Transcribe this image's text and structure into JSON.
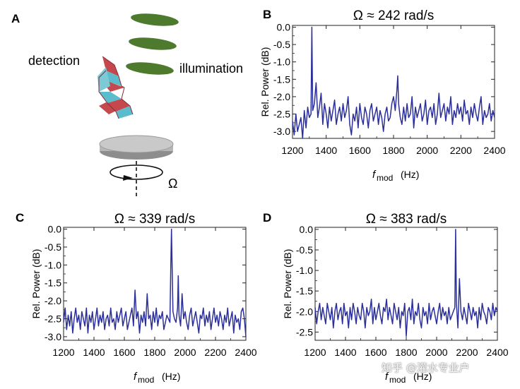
{
  "panels": {
    "A": {
      "letter": "A",
      "detection_label": "detection",
      "illumination_label": "illumination",
      "omega_label": "Ω"
    }
  },
  "chart_data": [
    {
      "panel": "B",
      "type": "line",
      "title": "Ω ≈ 242 rad/s",
      "xlabel_main": "f",
      "xlabel_sub": "mod",
      "xlabel_unit": "(Hz)",
      "ylabel": "Rel. Power (dB)",
      "xlim": [
        1200,
        2400
      ],
      "ylim": [
        -3.2,
        0.05
      ],
      "xticks": [
        1200,
        1400,
        1600,
        1800,
        2000,
        2200,
        2400
      ],
      "yticks": [
        0.0,
        -0.5,
        -1.0,
        -1.5,
        -2.0,
        -2.5,
        -3.0
      ],
      "ytick_labels": [
        "0.0",
        "-0.5",
        "-1.0",
        "-1.5",
        "-2.0",
        "-2.5",
        "-3.0"
      ],
      "color": "#2b2f9a",
      "series": [
        {
          "x": [
            1200,
            1210,
            1220,
            1230,
            1240,
            1250,
            1260,
            1270,
            1280,
            1290,
            1300,
            1310,
            1315,
            1320,
            1330,
            1340,
            1350,
            1360,
            1370,
            1380,
            1390,
            1400,
            1410,
            1420,
            1430,
            1440,
            1450,
            1460,
            1470,
            1480,
            1490,
            1500,
            1510,
            1520,
            1530,
            1540,
            1550,
            1560,
            1570,
            1580,
            1590,
            1600,
            1610,
            1620,
            1630,
            1640,
            1650,
            1660,
            1670,
            1680,
            1690,
            1700,
            1710,
            1720,
            1730,
            1740,
            1750,
            1760,
            1770,
            1780,
            1790,
            1800,
            1810,
            1820,
            1825,
            1830,
            1840,
            1850,
            1860,
            1870,
            1880,
            1890,
            1900,
            1910,
            1920,
            1930,
            1940,
            1950,
            1960,
            1970,
            1980,
            1990,
            2000,
            2010,
            2020,
            2030,
            2040,
            2050,
            2060,
            2070,
            2080,
            2090,
            2100,
            2110,
            2120,
            2130,
            2140,
            2150,
            2160,
            2170,
            2180,
            2190,
            2200,
            2210,
            2220,
            2230,
            2240,
            2250,
            2260,
            2270,
            2280,
            2290,
            2300,
            2310,
            2320,
            2330,
            2340,
            2350,
            2360,
            2370,
            2380,
            2390,
            2400
          ],
          "y": [
            -2.7,
            -3.1,
            -2.5,
            -3.0,
            -2.8,
            -2.6,
            -3.2,
            -2.4,
            -2.9,
            -2.3,
            -2.6,
            -2.5,
            0.0,
            -2.4,
            -2.2,
            -1.6,
            -2.6,
            -2.3,
            -1.9,
            -2.8,
            -2.2,
            -2.5,
            -2.9,
            -2.3,
            -2.7,
            -2.4,
            -2.1,
            -2.8,
            -2.5,
            -2.3,
            -2.7,
            -2.2,
            -2.6,
            -2.4,
            -2.0,
            -2.8,
            -3.1,
            -2.5,
            -2.7,
            -2.3,
            -2.9,
            -2.2,
            -2.6,
            -2.8,
            -2.3,
            -2.5,
            -2.9,
            -2.4,
            -2.2,
            -2.7,
            -2.5,
            -2.3,
            -2.8,
            -2.4,
            -2.6,
            -3.0,
            -2.5,
            -2.3,
            -2.7,
            -2.6,
            -2.2,
            -2.0,
            -2.4,
            -1.8,
            -1.4,
            -2.2,
            -2.6,
            -2.8,
            -2.3,
            -2.7,
            -2.2,
            -2.6,
            -2.5,
            -2.0,
            -2.9,
            -2.3,
            -2.6,
            -2.4,
            -2.2,
            -2.7,
            -2.5,
            -2.1,
            -2.8,
            -2.4,
            -2.3,
            -2.6,
            -2.2,
            -2.8,
            -2.5,
            -1.9,
            -2.6,
            -2.4,
            -2.2,
            -2.7,
            -2.3,
            -2.5,
            -2.0,
            -2.8,
            -2.4,
            -2.6,
            -2.2,
            -2.5,
            -2.3,
            -2.7,
            -2.1,
            -2.5,
            -2.4,
            -2.8,
            -2.3,
            -2.6,
            -2.2,
            -2.5,
            -2.7,
            -2.3,
            -2.0,
            -2.8,
            -2.4,
            -2.6,
            -2.5,
            -2.2,
            -2.7,
            -2.4,
            -2.6
          ]
        }
      ]
    },
    {
      "panel": "C",
      "type": "line",
      "title": "Ω ≈ 339 rad/s",
      "xlabel_main": "f",
      "xlabel_sub": "mod",
      "xlabel_unit": "(Hz)",
      "ylabel": "Rel. Power (dB)",
      "xlim": [
        1200,
        2400
      ],
      "ylim": [
        -3.1,
        0.05
      ],
      "xticks": [
        1200,
        1400,
        1600,
        1800,
        2000,
        2200,
        2400
      ],
      "yticks": [
        0.0,
        -0.5,
        -1.0,
        -1.5,
        -2.0,
        -2.5,
        -3.0
      ],
      "ytick_labels": [
        "0.0",
        "-0.5",
        "-1.0",
        "-1.5",
        "-2.0",
        "-2.5",
        "-3.0"
      ],
      "color": "#2b2f9a",
      "series": [
        {
          "x": [
            1200,
            1210,
            1220,
            1230,
            1240,
            1250,
            1260,
            1270,
            1280,
            1290,
            1300,
            1310,
            1320,
            1330,
            1340,
            1350,
            1360,
            1370,
            1380,
            1390,
            1400,
            1410,
            1420,
            1430,
            1440,
            1450,
            1460,
            1470,
            1480,
            1490,
            1500,
            1510,
            1520,
            1530,
            1540,
            1550,
            1560,
            1570,
            1580,
            1590,
            1600,
            1610,
            1620,
            1630,
            1640,
            1650,
            1660,
            1670,
            1680,
            1690,
            1700,
            1710,
            1720,
            1730,
            1740,
            1750,
            1760,
            1770,
            1780,
            1790,
            1800,
            1810,
            1820,
            1830,
            1840,
            1850,
            1860,
            1870,
            1880,
            1890,
            1900,
            1905,
            1910,
            1920,
            1930,
            1940,
            1950,
            1955,
            1960,
            1970,
            1980,
            1990,
            2000,
            2010,
            2020,
            2030,
            2040,
            2050,
            2060,
            2070,
            2080,
            2090,
            2100,
            2110,
            2120,
            2130,
            2140,
            2150,
            2160,
            2170,
            2180,
            2190,
            2200,
            2210,
            2220,
            2230,
            2240,
            2250,
            2260,
            2270,
            2280,
            2290,
            2300,
            2310,
            2320,
            2330,
            2340,
            2350,
            2360,
            2370,
            2380,
            2390,
            2400
          ],
          "y": [
            -2.6,
            -2.2,
            -2.8,
            -2.4,
            -2.7,
            -2.3,
            -2.9,
            -2.5,
            -2.2,
            -2.6,
            -2.4,
            -2.8,
            -2.3,
            -2.5,
            -2.7,
            -2.2,
            -2.9,
            -2.4,
            -2.6,
            -2.3,
            -2.8,
            -2.5,
            -2.2,
            -2.7,
            -2.4,
            -2.6,
            -2.3,
            -2.8,
            -2.5,
            -2.4,
            -2.7,
            -2.2,
            -2.6,
            -2.5,
            -2.8,
            -2.3,
            -2.6,
            -2.4,
            -2.2,
            -2.7,
            -2.5,
            -2.3,
            -2.8,
            -2.6,
            -2.4,
            -2.2,
            -2.7,
            -1.7,
            -2.5,
            -2.3,
            -2.9,
            -2.4,
            -2.6,
            -2.3,
            -2.7,
            -1.8,
            -2.5,
            -2.4,
            -2.8,
            -2.3,
            -2.6,
            -2.2,
            -2.7,
            -2.4,
            -2.5,
            -2.3,
            -2.8,
            -2.6,
            -2.4,
            -2.5,
            -2.6,
            -1.2,
            0.0,
            -2.3,
            -2.5,
            -2.6,
            -2.2,
            -1.3,
            -2.4,
            -2.7,
            -1.8,
            -2.5,
            -2.3,
            -2.6,
            -2.8,
            -2.4,
            -2.2,
            -2.7,
            -2.5,
            -2.3,
            -2.6,
            -2.9,
            -2.4,
            -2.5,
            -2.2,
            -2.7,
            -2.4,
            -2.6,
            -2.3,
            -2.8,
            -2.5,
            -2.2,
            -2.6,
            -2.4,
            -2.7,
            -2.3,
            -2.5,
            -2.8,
            -2.4,
            -2.6,
            -2.2,
            -2.7,
            -2.5,
            -2.3,
            -2.9,
            -2.4,
            -2.6,
            -2.5,
            -2.8,
            -2.3,
            -2.2,
            -2.5,
            -3.0
          ]
        }
      ]
    },
    {
      "panel": "D",
      "type": "line",
      "title": "Ω ≈ 383 rad/s",
      "xlabel_main": "f",
      "xlabel_sub": "mod",
      "xlabel_unit": "(Hz)",
      "ylabel": "Rel. Power (dB)",
      "xlim": [
        1200,
        2400
      ],
      "ylim": [
        -2.7,
        0.05
      ],
      "xticks": [
        1200,
        1400,
        1600,
        1800,
        2000,
        2200,
        2400
      ],
      "yticks": [
        0.0,
        -0.5,
        -1.0,
        -1.5,
        -2.0,
        -2.5
      ],
      "ytick_labels": [
        "0.0",
        "-0.5",
        "-1.0",
        "-1.5",
        "-2.0",
        "-2.5"
      ],
      "color": "#2b2f9a",
      "series": [
        {
          "x": [
            1200,
            1210,
            1220,
            1230,
            1240,
            1250,
            1260,
            1270,
            1280,
            1290,
            1300,
            1310,
            1320,
            1330,
            1340,
            1350,
            1360,
            1370,
            1380,
            1390,
            1400,
            1410,
            1420,
            1430,
            1440,
            1450,
            1460,
            1470,
            1480,
            1490,
            1500,
            1510,
            1520,
            1530,
            1540,
            1550,
            1560,
            1570,
            1580,
            1590,
            1600,
            1610,
            1620,
            1630,
            1640,
            1650,
            1660,
            1670,
            1680,
            1690,
            1700,
            1710,
            1720,
            1730,
            1740,
            1750,
            1760,
            1770,
            1780,
            1790,
            1800,
            1810,
            1820,
            1830,
            1840,
            1850,
            1860,
            1870,
            1880,
            1890,
            1900,
            1910,
            1920,
            1930,
            1940,
            1950,
            1960,
            1970,
            1980,
            1990,
            2000,
            2010,
            2020,
            2030,
            2040,
            2050,
            2060,
            2070,
            2080,
            2090,
            2100,
            2110,
            2120,
            2125,
            2130,
            2140,
            2150,
            2160,
            2170,
            2180,
            2190,
            2200,
            2210,
            2220,
            2230,
            2240,
            2250,
            2260,
            2270,
            2280,
            2290,
            2300,
            2310,
            2320,
            2330,
            2340,
            2350,
            2360,
            2370,
            2380,
            2390,
            2400
          ],
          "y": [
            -1.9,
            -2.3,
            -2.0,
            -1.8,
            -2.2,
            -1.9,
            -2.1,
            -2.3,
            -1.8,
            -2.0,
            -2.2,
            -1.9,
            -2.4,
            -2.0,
            -1.8,
            -2.2,
            -2.0,
            -1.9,
            -2.3,
            -1.8,
            -2.1,
            -2.0,
            -2.4,
            -1.9,
            -2.2,
            -1.8,
            -2.0,
            -2.3,
            -1.9,
            -2.1,
            -2.2,
            -1.8,
            -2.0,
            -2.4,
            -1.9,
            -2.1,
            -2.0,
            -1.7,
            -2.3,
            -1.9,
            -2.2,
            -2.0,
            -1.8,
            -2.1,
            -2.3,
            -1.9,
            -2.0,
            -1.7,
            -2.2,
            -1.9,
            -2.1,
            -2.3,
            -1.8,
            -2.0,
            -2.2,
            -1.9,
            -2.4,
            -2.0,
            -2.1,
            -1.8,
            -2.6,
            -2.0,
            -1.9,
            -2.2,
            -1.7,
            -2.3,
            -2.0,
            -2.1,
            -1.8,
            -2.2,
            -2.4,
            -1.9,
            -2.1,
            -2.0,
            -2.3,
            -1.8,
            -2.2,
            -2.0,
            -1.9,
            -2.1,
            -2.3,
            -2.0,
            -1.8,
            -2.2,
            -1.9,
            -2.1,
            -2.0,
            -2.3,
            -1.9,
            -2.2,
            -2.1,
            -2.0,
            -1.9,
            0.0,
            -1.8,
            -2.4,
            -1.2,
            -2.0,
            -2.2,
            -1.9,
            -2.1,
            -2.3,
            -1.8,
            -2.0,
            -2.2,
            -1.9,
            -2.1,
            -2.0,
            -2.4,
            -1.9,
            -2.2,
            -1.8,
            -2.0,
            -2.1,
            -2.3,
            -1.9,
            -2.0,
            -2.2,
            -1.8,
            -2.1,
            -1.9,
            -2.0
          ]
        }
      ]
    }
  ],
  "watermark": "知乎 @灌水专业户"
}
